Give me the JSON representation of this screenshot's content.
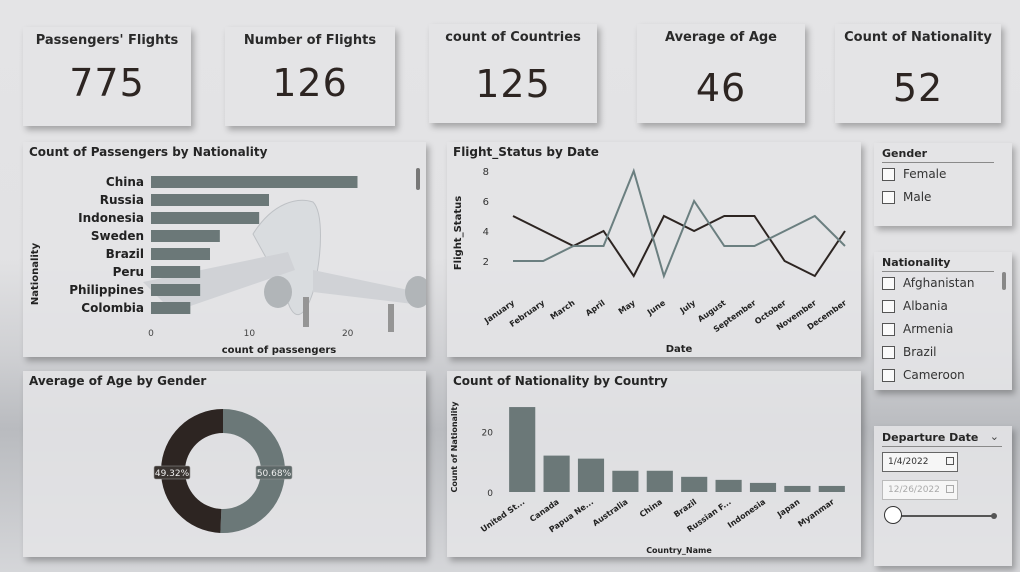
{
  "kpis": [
    {
      "title": "Passengers' Flights",
      "value": "775"
    },
    {
      "title": "Number of Flights",
      "value": "126"
    },
    {
      "title": "count of Countries",
      "value": "125"
    },
    {
      "title": "Average of Age",
      "value": "46"
    },
    {
      "title": "Count of Nationality",
      "value": "52"
    }
  ],
  "nationality_chart": {
    "title": "Count of Passengers by Nationality",
    "xlabel": "count of passengers",
    "ylabel": "Nationality"
  },
  "flight_status_chart": {
    "title": "Flight_Status by Date",
    "xlabel": "Date",
    "ylabel": "Flight_Status"
  },
  "age_gender_chart": {
    "title": "Average of Age by Gender"
  },
  "country_chart": {
    "title": "Count of Nationality by Country",
    "xlabel": "Country_Name",
    "ylabel": "Count of Nationality"
  },
  "gender_slicer": {
    "title": "Gender",
    "options": [
      "Female",
      "Male"
    ]
  },
  "nationality_slicer": {
    "title": "Nationality",
    "options": [
      "Afghanistan",
      "Albania",
      "Armenia",
      "Brazil",
      "Cameroon"
    ]
  },
  "date_slicer": {
    "title": "Departure Date",
    "start": "1/4/2022",
    "end": "12/26/2022"
  },
  "colors": {
    "bar": "#6b7878",
    "dark_line": "#2d2522",
    "light_line": "#6b7f80"
  },
  "chart_data": [
    {
      "type": "bar",
      "orientation": "horizontal",
      "title": "Count of Passengers by Nationality",
      "xlabel": "count of passengers",
      "ylabel": "Nationality",
      "categories": [
        "China",
        "Russia",
        "Indonesia",
        "Sweden",
        "Brazil",
        "Peru",
        "Philippines",
        "Colombia"
      ],
      "values": [
        21,
        12,
        11,
        7,
        6,
        5,
        5,
        4
      ],
      "xlim": [
        0,
        24
      ],
      "xticks": [
        0,
        10,
        20
      ]
    },
    {
      "type": "line",
      "title": "Flight_Status by Date",
      "xlabel": "Date",
      "ylabel": "Flight_Status",
      "categories": [
        "January",
        "February",
        "March",
        "April",
        "May",
        "June",
        "July",
        "August",
        "September",
        "October",
        "November",
        "December"
      ],
      "ylim": [
        0,
        8
      ],
      "yticks": [
        2,
        4,
        6,
        8
      ],
      "series": [
        {
          "values": [
            5,
            4,
            3,
            4,
            1,
            5,
            4,
            5,
            5,
            2,
            1,
            4
          ]
        },
        {
          "values": [
            2,
            2,
            3,
            3,
            8,
            1,
            6,
            3,
            3,
            4,
            5,
            3
          ]
        }
      ]
    },
    {
      "type": "pie",
      "donut": true,
      "title": "Average of Age by Gender",
      "slices": [
        {
          "value": 50.68,
          "label": "50.68%",
          "color": "#6b7878"
        },
        {
          "value": 49.32,
          "label": "49.32%",
          "color": "#2d2522"
        }
      ]
    },
    {
      "type": "bar",
      "title": "Count of Nationality by Country",
      "xlabel": "Country_Name",
      "ylabel": "Count of Nationality",
      "categories": [
        "United St...",
        "Canada",
        "Papua Ne...",
        "Australia",
        "China",
        "Brazil",
        "Russian F...",
        "Indonesia",
        "Japan",
        "Myanmar"
      ],
      "values": [
        28,
        12,
        11,
        7,
        7,
        5,
        4,
        3,
        2,
        2
      ],
      "ylim": [
        0,
        30
      ],
      "yticks": [
        0,
        20
      ]
    }
  ]
}
